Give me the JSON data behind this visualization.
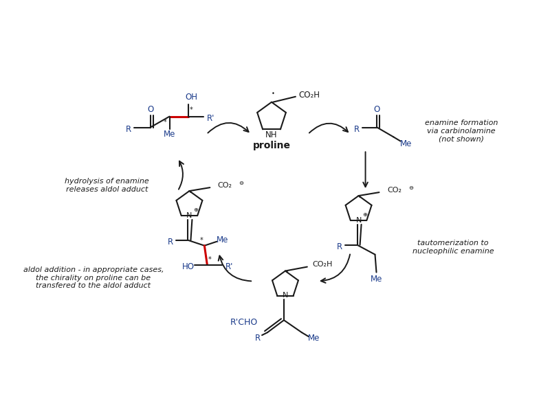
{
  "bg_color": "white",
  "black": "#1a1a1a",
  "blue": "#1a3a8a",
  "red": "#cc0000",
  "fig_width": 8.0,
  "fig_height": 6.0,
  "label_proline": "proline",
  "label_enamine_formation": "enamine formation\nvia carbinolamine\n(not shown)",
  "label_tautomerization": "tautomerization to\nnucleophilic enamine",
  "label_hydrolysis": "hydrolysis of enamine\nreleases aldol adduct",
  "label_aldol": "aldol addition - in appropriate cases,\nthe chirality on proline can be\ntransfered to the aldol adduct",
  "label_rcho": "R'CHO"
}
